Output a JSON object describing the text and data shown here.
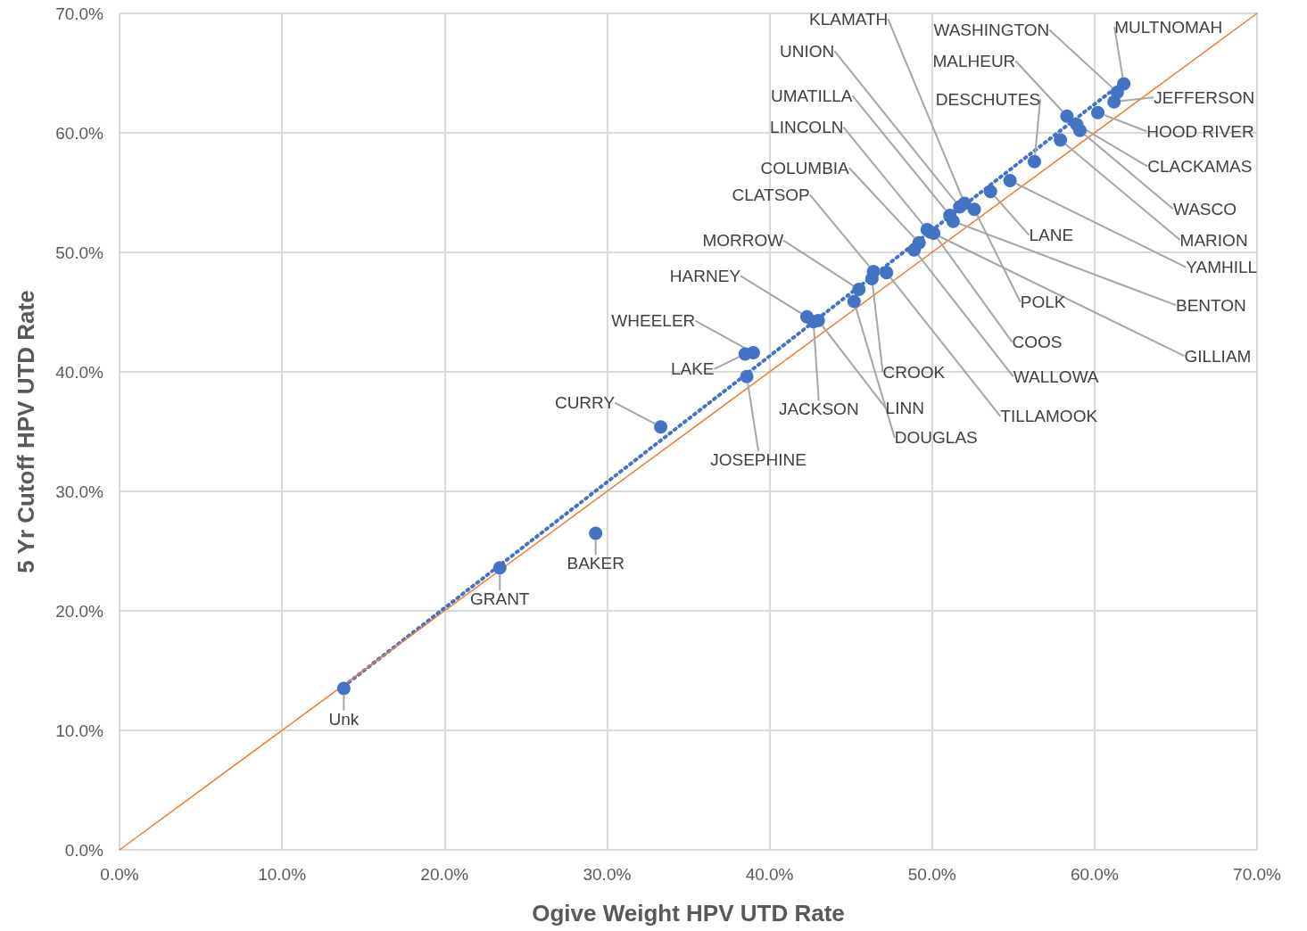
{
  "chart_data": {
    "type": "scatter",
    "xlabel": "Ogive Weight HPV UTD Rate",
    "ylabel": "5 Yr Cutoff HPV UTD Rate",
    "xlim": [
      0,
      70
    ],
    "ylim": [
      0,
      70
    ],
    "xticks": [
      {
        "value": 0,
        "label": "0.0%"
      },
      {
        "value": 10,
        "label": "10.0%"
      },
      {
        "value": 20,
        "label": "20.0%"
      },
      {
        "value": 30,
        "label": "30.0%"
      },
      {
        "value": 40,
        "label": "40.0%"
      },
      {
        "value": 50,
        "label": "50.0%"
      },
      {
        "value": 60,
        "label": "60.0%"
      },
      {
        "value": 70,
        "label": "70.0%"
      }
    ],
    "yticks": [
      {
        "value": 0,
        "label": "0.0%"
      },
      {
        "value": 10,
        "label": "10.0%"
      },
      {
        "value": 20,
        "label": "20.0%"
      },
      {
        "value": 30,
        "label": "30.0%"
      },
      {
        "value": 40,
        "label": "40.0%"
      },
      {
        "value": 50,
        "label": "50.0%"
      },
      {
        "value": 60,
        "label": "60.0%"
      },
      {
        "value": 70,
        "label": "70.0%"
      }
    ],
    "grid": true,
    "series": [
      {
        "color": "#4472c4",
        "marker": "circle",
        "x": [
          13.8,
          23.4,
          29.3,
          33.3,
          39.0,
          38.5,
          38.6,
          42.3,
          42.7,
          43.0,
          45.2,
          45.5,
          46.4,
          46.3,
          47.2,
          49.2,
          48.9,
          50.1,
          49.7,
          49.9,
          51.1,
          51.3,
          51.7,
          52.0,
          52.6,
          53.6,
          54.8,
          56.3,
          57.9,
          58.3,
          58.9,
          59.1,
          60.2,
          61.2,
          61.4,
          61.8
        ],
        "values": [
          13.5,
          23.6,
          26.5,
          35.4,
          41.6,
          41.5,
          39.6,
          44.6,
          44.2,
          44.3,
          45.9,
          46.9,
          48.4,
          47.8,
          48.3,
          50.8,
          50.2,
          51.6,
          51.9,
          51.7,
          53.1,
          52.6,
          53.8,
          54.1,
          53.6,
          55.1,
          56.0,
          57.6,
          59.4,
          61.4,
          60.7,
          60.2,
          61.7,
          62.6,
          63.4,
          64.1
        ],
        "value_labels": [
          "Unk",
          "GRANT",
          "BAKER",
          "CURRY",
          "WHEELER",
          "LAKE",
          "JOSEPHINE",
          "HARNEY",
          "JACKSON",
          "LINN",
          "DOUGLAS",
          "MORROW",
          "CLATSOP",
          "CROOK",
          "TILLAMOOK",
          "COLUMBIA",
          "WALLOWA",
          "COOS",
          "LINCOLN",
          "GILLIAM",
          "UMATILLA",
          "BENTON",
          "UNION",
          "KLAMATH",
          "POLK",
          "LANE",
          "YAMHILL",
          "DESCHUTES",
          "MARION",
          "MALHEUR",
          "CLACKAMAS",
          "WASCO",
          "HOOD RIVER",
          "JEFFERSON",
          "WASHINGTON",
          "MULTNOMAH"
        ]
      },
      {
        "type": "line",
        "color": "#4472c4",
        "line_style": "dotted",
        "marker": "none",
        "x": [
          13.8,
          61.8
        ],
        "values": [
          13.7,
          64.3
        ]
      },
      {
        "type": "line",
        "color": "#ed7d31",
        "line_style": "solid",
        "marker": "none",
        "x": [
          0,
          70
        ],
        "values": [
          0,
          70
        ]
      }
    ]
  }
}
